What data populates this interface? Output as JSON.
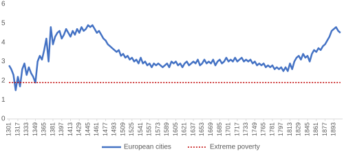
{
  "chart_data": {
    "type": "line",
    "x": [
      1301,
      1305,
      1309,
      1313,
      1317,
      1321,
      1325,
      1329,
      1333,
      1337,
      1341,
      1345,
      1349,
      1353,
      1357,
      1361,
      1365,
      1369,
      1373,
      1377,
      1381,
      1385,
      1389,
      1393,
      1397,
      1401,
      1405,
      1409,
      1413,
      1417,
      1421,
      1425,
      1429,
      1433,
      1437,
      1441,
      1445,
      1449,
      1453,
      1457,
      1461,
      1465,
      1469,
      1473,
      1477,
      1481,
      1485,
      1489,
      1493,
      1497,
      1501,
      1505,
      1509,
      1513,
      1517,
      1521,
      1525,
      1529,
      1533,
      1537,
      1541,
      1545,
      1549,
      1553,
      1557,
      1561,
      1565,
      1569,
      1573,
      1577,
      1581,
      1585,
      1589,
      1593,
      1597,
      1601,
      1605,
      1609,
      1613,
      1617,
      1621,
      1625,
      1629,
      1633,
      1637,
      1641,
      1645,
      1649,
      1653,
      1657,
      1661,
      1665,
      1669,
      1673,
      1677,
      1681,
      1685,
      1689,
      1693,
      1697,
      1701,
      1705,
      1709,
      1713,
      1717,
      1721,
      1725,
      1729,
      1733,
      1737,
      1741,
      1745,
      1749,
      1753,
      1757,
      1761,
      1765,
      1769,
      1773,
      1777,
      1781,
      1785,
      1789,
      1793,
      1797,
      1801,
      1805,
      1809,
      1813,
      1817,
      1821,
      1825,
      1829,
      1833,
      1837,
      1841,
      1845,
      1849,
      1853,
      1857,
      1861,
      1865,
      1869,
      1873,
      1877,
      1881,
      1885,
      1889,
      1893,
      1897,
      1901,
      1905
    ],
    "series": [
      {
        "name": "European cities",
        "color": "#4472c4",
        "values": [
          2.8,
          2.6,
          2.3,
          1.5,
          2.2,
          1.7,
          2.6,
          2.9,
          2.3,
          2.7,
          2.4,
          2.2,
          1.9,
          3.0,
          3.3,
          3.1,
          3.6,
          4.2,
          3.0,
          4.8,
          3.9,
          4.3,
          4.5,
          4.6,
          4.2,
          4.4,
          4.7,
          4.5,
          4.3,
          4.6,
          4.4,
          4.7,
          4.5,
          4.8,
          4.6,
          4.7,
          4.9,
          4.8,
          4.9,
          4.7,
          4.5,
          4.6,
          4.4,
          4.2,
          4.1,
          3.9,
          3.8,
          3.7,
          3.6,
          3.5,
          3.6,
          3.3,
          3.4,
          3.2,
          3.3,
          3.1,
          3.2,
          3.0,
          3.1,
          2.9,
          3.2,
          2.9,
          3.0,
          2.8,
          2.9,
          2.7,
          2.9,
          2.8,
          2.9,
          2.8,
          2.7,
          2.8,
          2.9,
          2.7,
          3.0,
          2.9,
          3.0,
          2.8,
          2.9,
          2.7,
          2.9,
          3.0,
          2.8,
          2.9,
          3.0,
          2.9,
          3.1,
          2.8,
          2.9,
          3.1,
          2.9,
          3.0,
          2.9,
          3.1,
          2.8,
          3.0,
          3.1,
          2.9,
          3.0,
          3.2,
          3.0,
          3.1,
          3.0,
          3.2,
          3.0,
          3.1,
          3.2,
          3.0,
          3.1,
          3.0,
          3.1,
          2.9,
          3.0,
          2.8,
          2.9,
          2.8,
          2.9,
          2.7,
          2.8,
          2.7,
          2.8,
          2.6,
          2.7,
          2.6,
          2.7,
          2.5,
          2.7,
          2.5,
          2.9,
          2.6,
          3.0,
          3.2,
          3.3,
          3.1,
          3.4,
          3.2,
          3.3,
          3.0,
          3.4,
          3.6,
          3.5,
          3.7,
          3.6,
          3.8,
          3.9,
          4.1,
          4.3,
          4.6,
          4.7,
          4.8,
          4.6,
          4.5
        ]
      },
      {
        "name": "Extreme poverty",
        "color": "#c00000",
        "dashed": true,
        "x": [
          1301,
          1905
        ],
        "values": [
          1.9,
          1.9
        ]
      }
    ],
    "xlim": [
      1297,
      1909
    ],
    "xticks": [
      1301,
      1317,
      1333,
      1349,
      1365,
      1381,
      1397,
      1413,
      1429,
      1445,
      1461,
      1477,
      1493,
      1509,
      1525,
      1541,
      1557,
      1573,
      1589,
      1605,
      1621,
      1637,
      1653,
      1669,
      1685,
      1701,
      1717,
      1733,
      1749,
      1765,
      1781,
      1797,
      1813,
      1829,
      1845,
      1861,
      1877,
      1893
    ],
    "ylim": [
      0,
      6
    ],
    "yticks": [
      0,
      1,
      2,
      3,
      4,
      5,
      6
    ],
    "grid": false,
    "legend": "bottom"
  }
}
